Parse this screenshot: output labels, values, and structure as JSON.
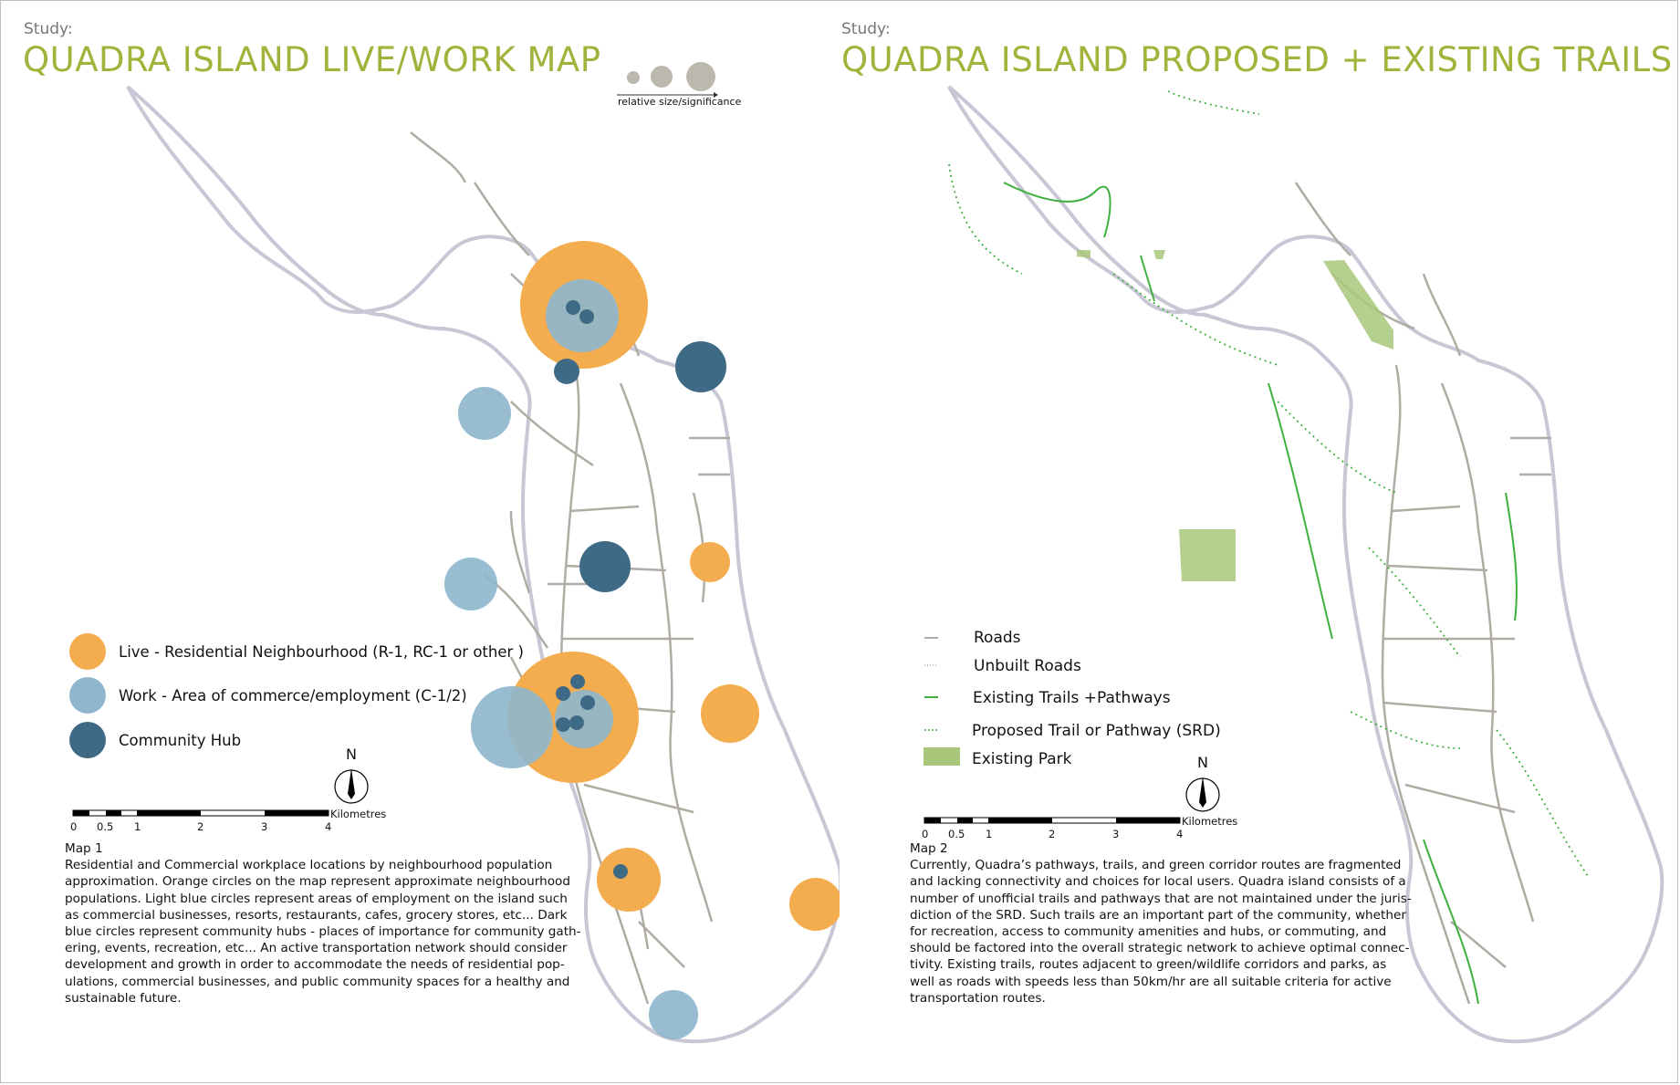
{
  "left": {
    "study": "Study:",
    "title": "QUADRA ISLAND LIVE/WORK MAP",
    "size_legend": "relative size/significance",
    "legend": [
      {
        "label": "Live - Residential Neighbourhood (R-1, RC-1 or other )",
        "color": "#f3ad4e"
      },
      {
        "label": "Work - Area of commerce/employment (C-1/2)",
        "color": "#8fb6cc"
      },
      {
        "label": "Community Hub",
        "color": "#3f6a86"
      }
    ],
    "scale": {
      "ticks": [
        "0",
        "0.5",
        "1",
        "2",
        "3",
        "4"
      ],
      "unit": "Kilometres"
    },
    "north": "N",
    "caption_title": "Map 1",
    "caption_lines": [
      "Residential and Commercial workplace locations by neighbourhood population",
      "approximation. Orange circles on the map represent approximate neighbourhood",
      "populations. Light blue circles represent areas of employment on the island such",
      "as commercial businesses, resorts, restaurants, cafes, grocery stores, etc... Dark",
      "blue circles represent community hubs - places of importance for community gath-",
      "ering, events, recreation, etc... An active transportation network should consider",
      "development and growth in order to accommodate the needs of residential pop-",
      "ulations, commercial businesses, and public community spaces for a healthy and",
      "sustainable future."
    ]
  },
  "right": {
    "study": "Study:",
    "title": "QUADRA ISLAND PROPOSED + EXISTING TRAILS",
    "legend": [
      {
        "label": "Roads",
        "style": "road"
      },
      {
        "label": "Unbuilt Roads",
        "style": "unbuilt"
      },
      {
        "label": "Existing Trails +Pathways",
        "style": "trail"
      },
      {
        "label": "Proposed Trail or Pathway (SRD)",
        "style": "proposed"
      },
      {
        "label": "Existing Park",
        "style": "park"
      }
    ],
    "scale": {
      "ticks": [
        "0",
        "0.5",
        "1",
        "2",
        "3",
        "4"
      ],
      "unit": "Kilometres"
    },
    "north": "N",
    "caption_title": "Map 2",
    "caption_lines": [
      "Currently, Quadra’s pathways, trails, and green corridor routes are fragmented",
      "and lacking connectivity and choices for local users. Quadra island consists of a",
      "number of unofficial trails and pathways that are not maintained under the juris-",
      "diction of the SRD. Such trails are an important part of the community, whether",
      "for recreation, access to community amenities and hubs, or commuting, and",
      "should be factored into the overall strategic network to achieve optimal connec-",
      "tivity. Existing trails, routes adjacent to green/wildlife corridors and parks, as",
      "well as roads with speeds less than 50km/hr are all suitable criteria for active",
      "transportation routes."
    ]
  },
  "colors": {
    "title": "#a3b23b",
    "live": "#f3ad4e",
    "work": "#8fb6cc",
    "hub": "#3f6a86",
    "road": "#b0aca3",
    "trail": "#3fb03f",
    "park": "#a8c77a",
    "coast": "#c9c7d6"
  }
}
